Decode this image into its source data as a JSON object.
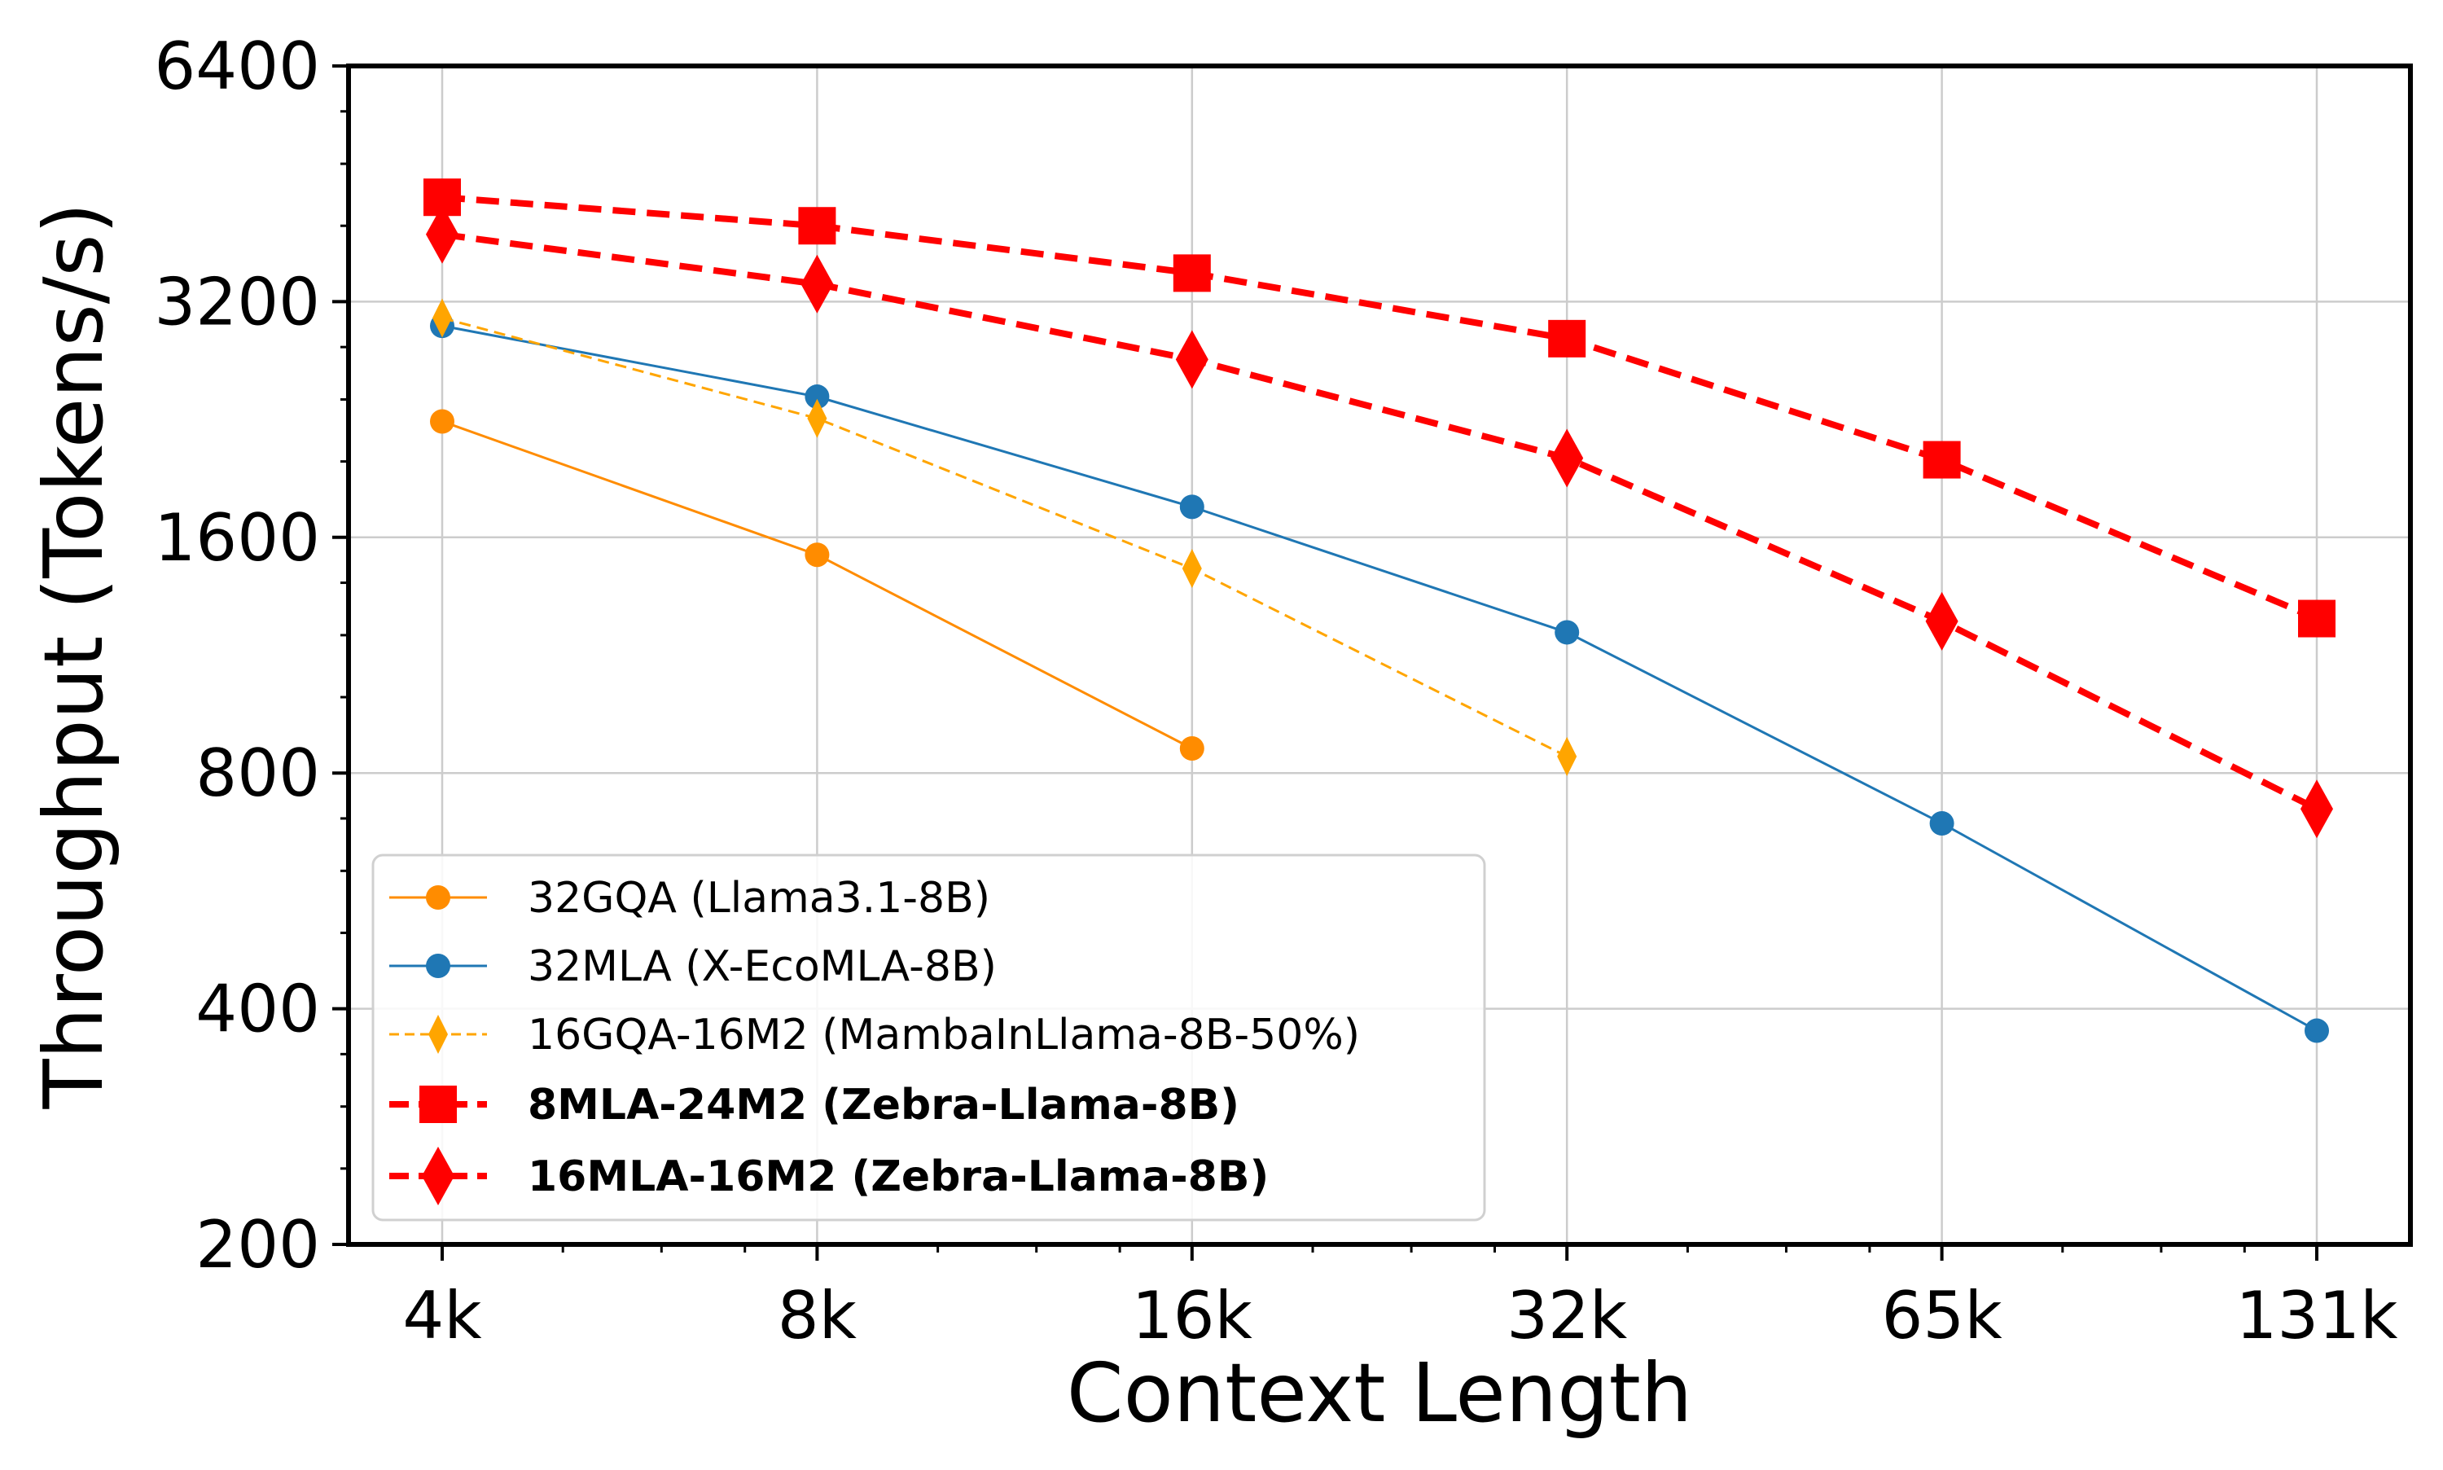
{
  "chart_data": {
    "type": "line",
    "xlabel": "Context Length",
    "ylabel": "Throughput (Tokens/s)",
    "x_categories": [
      "4k",
      "8k",
      "16k",
      "32k",
      "65k",
      "131k"
    ],
    "y_scale": "log2",
    "ylim": [
      200,
      6400
    ],
    "y_ticks": [
      200,
      400,
      800,
      1600,
      3200,
      6400
    ],
    "y_tick_labels": [
      "200",
      "400",
      "800",
      "1600",
      "3200",
      "6400"
    ],
    "grid": true,
    "legend_position": "lower-left",
    "series": [
      {
        "name": "32GQA (Llama3.1-8B)",
        "color": "#ff8c00",
        "marker": "circle",
        "line_style": "solid",
        "bold": false,
        "values": [
          2250,
          1520,
          860,
          null,
          null,
          null
        ]
      },
      {
        "name": "32MLA (X-EcoMLA-8B)",
        "color": "#1f77b4",
        "marker": "circle",
        "line_style": "solid",
        "bold": false,
        "values": [
          2980,
          2420,
          1750,
          1210,
          690,
          375
        ]
      },
      {
        "name": "16GQA-16M2 (MambaInLlama-8B-50%)",
        "color": "#ffa500",
        "marker": "diamond",
        "line_style": "dashed",
        "bold": false,
        "values": [
          3050,
          2270,
          1460,
          840,
          null,
          null
        ]
      },
      {
        "name": "8MLA-24M2 (Zebra-Llama-8B)",
        "color": "#ff0000",
        "marker": "square",
        "line_style": "dashed",
        "bold": true,
        "values": [
          4350,
          4000,
          3480,
          2870,
          2010,
          1260
        ]
      },
      {
        "name": "16MLA-16M2 (Zebra-Llama-8B)",
        "color": "#ff0000",
        "marker": "diamond",
        "line_style": "dashed",
        "bold": true,
        "values": [
          3900,
          3370,
          2700,
          2020,
          1250,
          720
        ]
      }
    ]
  }
}
